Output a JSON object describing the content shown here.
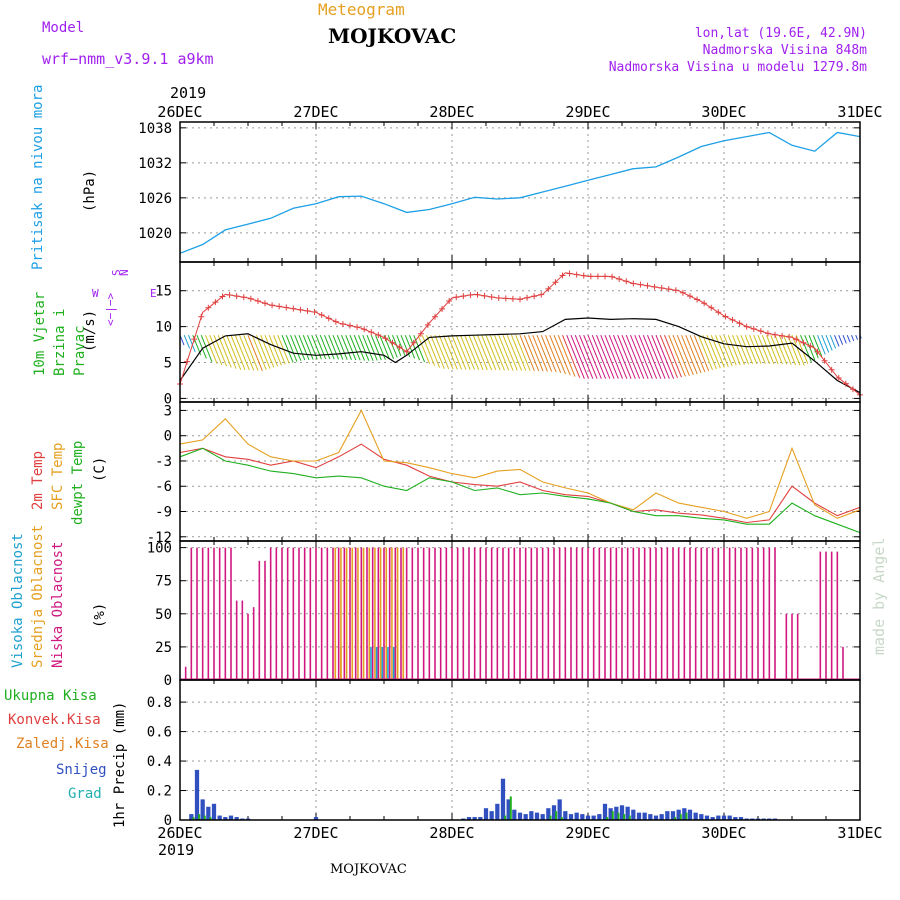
{
  "header": {
    "model_label": "Model",
    "model_name": "wrf−nmm_v3.9.1 a9km",
    "meteogram": "Meteogram",
    "station": "MOJKOVAC",
    "lonlat": "lon,lat (19.6E, 42.9N)",
    "elevation": "Nadmorska Visina 848m",
    "model_elevation": "Nadmorska Visina u modelu 1279.8m",
    "year_top": "2019",
    "year_bottom": "2019",
    "footer_station": "MOJKOVAC",
    "credit": "made by Angel"
  },
  "colors": {
    "pressure": "#1ea0e6",
    "wind_speed": "#000000",
    "gust": "#e04040",
    "temp2m": "#e04040",
    "sfc_temp": "#e6a020",
    "dewpt": "#20b020",
    "high_cloud": "#20a0d0",
    "mid_cloud": "#e6a020",
    "low_cloud": "#d01880",
    "ukupna": "#20b020",
    "konvek": "#e04040",
    "zaledj": "#e08020",
    "snijeg": "#3050c0",
    "grad": "#20b0b0",
    "wind_label": "#a020f0"
  },
  "chart_data": [
    {
      "type": "line",
      "panel": "pressure",
      "title": "Pritisak na nivou mora",
      "ylabel": "(hPa)",
      "ylim": [
        1015,
        1039
      ],
      "yticks": [
        1020,
        1026,
        1032,
        1038
      ],
      "x_categories": [
        "26DEC",
        "27DEC",
        "28DEC",
        "29DEC",
        "30DEC",
        "31DEC"
      ],
      "xlim": [
        0,
        120
      ],
      "grid": true,
      "series": [
        {
          "x": [
            0,
            4,
            8,
            12,
            16,
            20,
            24,
            28,
            32,
            36,
            40,
            44,
            48,
            52,
            56,
            60,
            64,
            68,
            72,
            76,
            80,
            84,
            88,
            92,
            96,
            100,
            104,
            108,
            112,
            116,
            120
          ],
          "values": [
            1016.5,
            1018,
            1020.5,
            1021.5,
            1022.5,
            1024.2,
            1025.0,
            1026.2,
            1026.3,
            1025.0,
            1023.5,
            1024.0,
            1025.0,
            1026.1,
            1025.8,
            1026.0,
            1027.0,
            1028.0,
            1029.0,
            1030.0,
            1031.0,
            1031.3,
            1033.0,
            1034.8,
            1035.8,
            1036.5,
            1037.2,
            1035.0,
            1034.0,
            1037.2,
            1036.5
          ]
        }
      ]
    },
    {
      "type": "line",
      "panel": "wind",
      "title": "10m Vjetar Brzina i Pravac",
      "ylabel": "(m/s)",
      "ylim": [
        -0.5,
        19
      ],
      "yticks": [
        0,
        5,
        10,
        15
      ],
      "compass": {
        "n": "N",
        "s": "S",
        "e": "E",
        "w": "W",
        "west_left": "W",
        "arrow": "<−|−>",
        "east_right": "E"
      },
      "grid": true,
      "series": [
        {
          "name": "speed",
          "x": [
            0,
            4,
            8,
            12,
            16,
            20,
            24,
            28,
            32,
            36,
            38,
            40,
            44,
            48,
            52,
            56,
            60,
            64,
            68,
            72,
            76,
            80,
            84,
            88,
            92,
            96,
            100,
            104,
            108,
            112,
            116,
            120
          ],
          "values": [
            2.5,
            7,
            8.7,
            9,
            7.5,
            6.3,
            6.0,
            6.2,
            6.5,
            6.0,
            5.0,
            6.0,
            8.5,
            8.7,
            8.8,
            8.9,
            9.0,
            9.3,
            11.0,
            11.2,
            11.0,
            11.1,
            11.0,
            10.0,
            8.6,
            7.6,
            7.2,
            7.3,
            7.7,
            5.2,
            2.5,
            0.8
          ]
        },
        {
          "name": "gust",
          "x": [
            0,
            4,
            8,
            12,
            16,
            20,
            24,
            28,
            32,
            36,
            40,
            44,
            48,
            52,
            56,
            60,
            64,
            68,
            72,
            76,
            80,
            84,
            88,
            92,
            96,
            100,
            104,
            108,
            112,
            116,
            120
          ],
          "values": [
            2,
            12,
            14.5,
            14,
            13,
            12.5,
            12,
            10.5,
            9.8,
            8.5,
            6.5,
            10.5,
            14,
            14.5,
            14,
            13.8,
            14.5,
            17.5,
            17.0,
            17.0,
            16.0,
            15.5,
            15.0,
            13.5,
            11.5,
            10.0,
            9.0,
            8.5,
            7.0,
            3.0,
            0.5
          ]
        }
      ],
      "barbs_angle_deg": [
        200,
        210,
        200,
        190,
        200,
        195,
        200,
        190,
        195,
        200,
        210,
        210,
        200,
        195,
        200,
        205,
        200,
        195,
        200,
        195,
        200,
        195,
        200,
        205,
        210,
        215,
        220,
        220,
        220,
        215,
        210
      ]
    },
    {
      "type": "line",
      "panel": "temperature",
      "title": "2m Temp / SFC Temp / dewpt Temp",
      "labels": [
        "2m Temp",
        "SFC Temp",
        "dewpt Temp"
      ],
      "ylabel": "(C)",
      "ylim": [
        -12.5,
        4
      ],
      "yticks": [
        -12,
        -9,
        -6,
        -3,
        0,
        3
      ],
      "grid": true,
      "series": [
        {
          "name": "2m Temp",
          "x": [
            0,
            4,
            8,
            12,
            16,
            20,
            24,
            28,
            32,
            36,
            40,
            44,
            48,
            52,
            56,
            60,
            64,
            68,
            72,
            76,
            80,
            84,
            88,
            92,
            96,
            100,
            104,
            108,
            112,
            116,
            120
          ],
          "values": [
            -2,
            -1.5,
            -2.5,
            -2.8,
            -3.5,
            -3.0,
            -3.8,
            -2.5,
            -1.0,
            -2.8,
            -3.5,
            -4.8,
            -5.5,
            -5.8,
            -6.0,
            -5.5,
            -6.5,
            -7.0,
            -7.2,
            -8.0,
            -9.0,
            -8.8,
            -9.2,
            -9.4,
            -9.8,
            -10.3,
            -10.0,
            -6.0,
            -8.0,
            -9.5,
            -8.5
          ]
        },
        {
          "name": "SFC Temp",
          "x": [
            0,
            4,
            8,
            12,
            16,
            20,
            24,
            28,
            32,
            36,
            40,
            44,
            48,
            52,
            56,
            60,
            64,
            68,
            72,
            76,
            80,
            84,
            88,
            92,
            96,
            100,
            104,
            108,
            112,
            116,
            120
          ],
          "values": [
            -1,
            -0.5,
            2,
            -1,
            -2.5,
            -3.0,
            -3.0,
            -2.0,
            3.0,
            -3.0,
            -3.2,
            -3.8,
            -4.5,
            -5.0,
            -4.2,
            -4.0,
            -5.5,
            -6.2,
            -6.8,
            -8.0,
            -8.8,
            -6.8,
            -8.0,
            -8.5,
            -9.0,
            -9.8,
            -9.0,
            -1.5,
            -8.2,
            -9.8,
            -8.8
          ]
        },
        {
          "name": "dewpt Temp",
          "x": [
            0,
            4,
            8,
            12,
            16,
            20,
            24,
            28,
            32,
            36,
            40,
            44,
            48,
            52,
            56,
            60,
            64,
            68,
            72,
            76,
            80,
            84,
            88,
            92,
            96,
            100,
            104,
            108,
            112,
            116,
            120
          ],
          "values": [
            -2.5,
            -1.5,
            -3.0,
            -3.5,
            -4.2,
            -4.5,
            -5.0,
            -4.8,
            -5.0,
            -6.0,
            -6.5,
            -5.0,
            -5.5,
            -6.5,
            -6.2,
            -7.0,
            -6.8,
            -7.2,
            -7.5,
            -8.0,
            -9.0,
            -9.5,
            -9.5,
            -9.8,
            -10.0,
            -10.5,
            -10.5,
            -8.0,
            -9.5,
            -10.5,
            -11.5
          ]
        }
      ]
    },
    {
      "type": "bar",
      "panel": "cloud",
      "title": "Visoka Oblacnost / Srednja Oblacnost / Niska Oblacnost",
      "labels": [
        "Visoka Oblacnost",
        "Srednja Oblacnost",
        "Niska Oblacnost"
      ],
      "ylabel": "(%)",
      "ylim": [
        0,
        105
      ],
      "yticks": [
        0,
        25,
        50,
        75,
        100
      ],
      "grid": true,
      "low_cloud_segments": [
        {
          "x0": 1,
          "x1": 2,
          "value": 10
        },
        {
          "x0": 2,
          "x1": 10,
          "value": 100
        },
        {
          "x0": 10,
          "x1": 12,
          "value": 60
        },
        {
          "x0": 12,
          "x1": 13,
          "value": 50
        },
        {
          "x0": 13,
          "x1": 14,
          "value": 55
        },
        {
          "x0": 14,
          "x1": 16,
          "value": 90
        },
        {
          "x0": 16,
          "x1": 106,
          "value": 100
        },
        {
          "x0": 107,
          "x1": 110,
          "value": 50
        },
        {
          "x0": 113,
          "x1": 117,
          "value": 97
        },
        {
          "x0": 117,
          "x1": 118,
          "value": 25
        }
      ],
      "mid_cloud_segments": [
        {
          "x0": 27,
          "x1": 40,
          "value": 100
        },
        {
          "x0": 27,
          "x1": 29,
          "value": 25
        },
        {
          "x0": 38,
          "x1": 40,
          "value": 60
        }
      ],
      "high_cloud_segments": [
        {
          "x0": 33,
          "x1": 38,
          "value": 25
        }
      ]
    },
    {
      "type": "bar",
      "panel": "precip",
      "title": "1hr Precip",
      "labels": [
        "Ukupna Kisa",
        "Konvek.Kisa",
        "Zaledj.Kisa",
        "Snijeg",
        "Grad"
      ],
      "ylabel": "1hr Precip (mm)",
      "ylim": [
        0,
        0.95
      ],
      "yticks": [
        0,
        0.2,
        0.4,
        0.6,
        0.8
      ],
      "grid": true,
      "snow": {
        "x": [
          2,
          3,
          4,
          5,
          6,
          7,
          8,
          9,
          10,
          11,
          12,
          24,
          50,
          51,
          52,
          53,
          54,
          55,
          56,
          57,
          58,
          59,
          60,
          61,
          62,
          63,
          64,
          65,
          66,
          67,
          68,
          69,
          70,
          71,
          72,
          73,
          74,
          75,
          76,
          77,
          78,
          79,
          80,
          81,
          82,
          83,
          84,
          85,
          86,
          87,
          88,
          89,
          90,
          91,
          92,
          93,
          94,
          95,
          96,
          97,
          98,
          99,
          100,
          101,
          102,
          103,
          104,
          105
        ],
        "values": [
          0.04,
          0.34,
          0.14,
          0.09,
          0.11,
          0.03,
          0.02,
          0.03,
          0.02,
          0.01,
          0.01,
          0.02,
          0.01,
          0.02,
          0.02,
          0.02,
          0.08,
          0.06,
          0.11,
          0.28,
          0.14,
          0.07,
          0.05,
          0.04,
          0.06,
          0.05,
          0.04,
          0.08,
          0.1,
          0.14,
          0.06,
          0.04,
          0.05,
          0.04,
          0.03,
          0.03,
          0.04,
          0.11,
          0.08,
          0.09,
          0.1,
          0.09,
          0.07,
          0.05,
          0.05,
          0.04,
          0.03,
          0.04,
          0.06,
          0.06,
          0.07,
          0.08,
          0.07,
          0.05,
          0.04,
          0.03,
          0.02,
          0.03,
          0.03,
          0.03,
          0.02,
          0.02,
          0.01,
          0.01,
          0.01,
          0.01,
          0.01,
          0.01
        ]
      },
      "rain": {
        "x": [
          2,
          3,
          4,
          5,
          57,
          58,
          65,
          66,
          67,
          75,
          76,
          77,
          78,
          79,
          87,
          88,
          89
        ],
        "values": [
          0.02,
          0.04,
          0.03,
          0.02,
          0.03,
          0.16,
          0.03,
          0.06,
          0.02,
          0.02,
          0.06,
          0.05,
          0.04,
          0.03,
          0.02,
          0.04,
          0.05
        ]
      }
    }
  ]
}
